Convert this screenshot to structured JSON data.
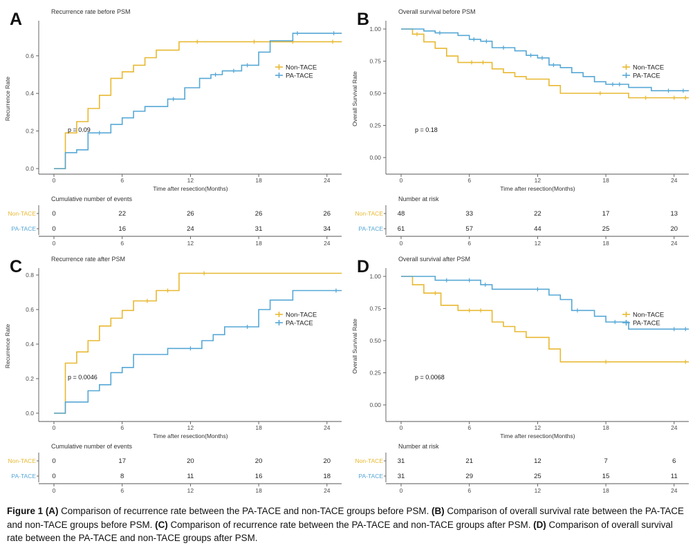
{
  "colors": {
    "non_tace": "#E8B830",
    "pa_tace": "#55A7D5",
    "axis": "#555555",
    "tick_text": "#4d4d4d",
    "text": "#222222"
  },
  "chart_data": [
    {
      "panel": "A",
      "type": "line",
      "subtype": "kaplan-meier-step",
      "title": "Recurrence rate before PSM",
      "xlabel": "Time after resection(Months)",
      "ylabel": "Recurrence Rate",
      "p_value": "p = 0.09",
      "legend_position": "right",
      "grid": false,
      "xlim": [
        0,
        25.3
      ],
      "xticks": [
        0,
        6,
        12,
        18,
        24
      ],
      "ylim": [
        0,
        0.74
      ],
      "yticks": [
        0,
        0.2,
        0.4,
        0.6
      ],
      "ytick_labels": [
        "0.0",
        "0.2",
        "0.4",
        "0.6"
      ],
      "series": [
        {
          "name": "Non-TACE",
          "color_key": "non_tace",
          "steps": [
            [
              0,
              0
            ],
            [
              1,
              0.19
            ],
            [
              2,
              0.25
            ],
            [
              3,
              0.32
            ],
            [
              4,
              0.39
            ],
            [
              5,
              0.48
            ],
            [
              6,
              0.515
            ],
            [
              7,
              0.55
            ],
            [
              8,
              0.59
            ],
            [
              9,
              0.63
            ],
            [
              11,
              0.675
            ],
            [
              25.3,
              0.675
            ]
          ],
          "censors": [
            [
              12.6,
              0.675
            ],
            [
              17.6,
              0.675
            ],
            [
              21,
              0.675
            ],
            [
              24.5,
              0.675
            ]
          ]
        },
        {
          "name": "PA-TACE",
          "color_key": "pa_tace",
          "steps": [
            [
              0,
              0
            ],
            [
              1,
              0.085
            ],
            [
              2,
              0.1
            ],
            [
              3,
              0.19
            ],
            [
              5,
              0.235
            ],
            [
              6,
              0.27
            ],
            [
              7,
              0.305
            ],
            [
              8,
              0.33
            ],
            [
              10,
              0.37
            ],
            [
              11.5,
              0.43
            ],
            [
              12.8,
              0.48
            ],
            [
              13.8,
              0.5
            ],
            [
              14.8,
              0.52
            ],
            [
              16.5,
              0.55
            ],
            [
              18,
              0.62
            ],
            [
              19,
              0.68
            ],
            [
              21,
              0.72
            ],
            [
              25.3,
              0.72
            ]
          ],
          "censors": [
            [
              4,
              0.19
            ],
            [
              10.5,
              0.37
            ],
            [
              14.2,
              0.5
            ],
            [
              15.8,
              0.52
            ],
            [
              17,
              0.55
            ],
            [
              21.4,
              0.72
            ],
            [
              24.6,
              0.72
            ]
          ]
        }
      ],
      "table": {
        "title": "Cumulative number of events",
        "xticks": [
          0,
          6,
          12,
          18,
          24
        ],
        "xlabel": "Time after resection(Months)",
        "rows": [
          {
            "label": "Non-TACE",
            "color_key": "non_tace",
            "values": [
              "0",
              "22",
              "26",
              "26",
              "26"
            ]
          },
          {
            "label": "PA-TACE",
            "color_key": "pa_tace",
            "values": [
              "0",
              "16",
              "24",
              "31",
              "34"
            ]
          }
        ]
      }
    },
    {
      "panel": "B",
      "type": "line",
      "subtype": "kaplan-meier-step",
      "title": "Overall survival before PSM",
      "xlabel": "Time after resection(Months)",
      "ylabel": "Overall Survival Rate",
      "p_value": "p = 0.18",
      "legend_position": "right",
      "grid": false,
      "xlim": [
        0,
        25.3
      ],
      "xticks": [
        0,
        6,
        12,
        18,
        24
      ],
      "ylim": [
        0,
        1.0
      ],
      "yticks": [
        0,
        0.25,
        0.5,
        0.75,
        1.0
      ],
      "ytick_labels": [
        "0.00",
        "0.25",
        "0.50",
        "0.75",
        "1.00"
      ],
      "series": [
        {
          "name": "Non-TACE",
          "color_key": "non_tace",
          "steps": [
            [
              0,
              1.0
            ],
            [
              1,
              0.96
            ],
            [
              2,
              0.9
            ],
            [
              3,
              0.85
            ],
            [
              4,
              0.79
            ],
            [
              5,
              0.74
            ],
            [
              8,
              0.69
            ],
            [
              9,
              0.66
            ],
            [
              10,
              0.63
            ],
            [
              11,
              0.61
            ],
            [
              13,
              0.56
            ],
            [
              14,
              0.5
            ],
            [
              20,
              0.465
            ],
            [
              25.3,
              0.465
            ]
          ],
          "censors": [
            [
              1.4,
              0.96
            ],
            [
              6.2,
              0.74
            ],
            [
              7.2,
              0.74
            ],
            [
              17.5,
              0.5
            ],
            [
              21.5,
              0.465
            ],
            [
              24,
              0.465
            ],
            [
              25,
              0.465
            ]
          ]
        },
        {
          "name": "PA-TACE",
          "color_key": "pa_tace",
          "steps": [
            [
              0,
              1.0
            ],
            [
              2,
              0.985
            ],
            [
              3,
              0.97
            ],
            [
              5,
              0.95
            ],
            [
              6,
              0.92
            ],
            [
              7,
              0.905
            ],
            [
              8,
              0.855
            ],
            [
              10,
              0.83
            ],
            [
              11,
              0.795
            ],
            [
              12,
              0.775
            ],
            [
              13,
              0.72
            ],
            [
              14,
              0.7
            ],
            [
              15,
              0.66
            ],
            [
              16,
              0.63
            ],
            [
              17,
              0.59
            ],
            [
              18,
              0.57
            ],
            [
              20,
              0.545
            ],
            [
              22,
              0.52
            ],
            [
              25.3,
              0.52
            ]
          ],
          "censors": [
            [
              3.4,
              0.97
            ],
            [
              6.4,
              0.92
            ],
            [
              7.5,
              0.905
            ],
            [
              9,
              0.855
            ],
            [
              11.4,
              0.795
            ],
            [
              12.4,
              0.775
            ],
            [
              13.4,
              0.72
            ],
            [
              18.6,
              0.57
            ],
            [
              19.2,
              0.57
            ],
            [
              23.5,
              0.52
            ],
            [
              24.8,
              0.52
            ]
          ]
        }
      ],
      "table": {
        "title": "Number at risk",
        "xticks": [
          0,
          6,
          12,
          18,
          24
        ],
        "xlabel": "Time after resection(Months)",
        "rows": [
          {
            "label": "Non-TACE",
            "color_key": "non_tace",
            "values": [
              "48",
              "33",
              "22",
              "17",
              "13"
            ]
          },
          {
            "label": "PA-TACE",
            "color_key": "pa_tace",
            "values": [
              "61",
              "57",
              "44",
              "25",
              "20"
            ]
          }
        ]
      }
    },
    {
      "panel": "C",
      "type": "line",
      "subtype": "kaplan-meier-step",
      "title": "Recurrence rate after PSM",
      "xlabel": "Time after resection(Months)",
      "ylabel": "Recurrence Rate",
      "p_value": "p = 0.0046",
      "legend_position": "right",
      "grid": false,
      "xlim": [
        0,
        25.3
      ],
      "xticks": [
        0,
        6,
        12,
        18,
        24
      ],
      "ylim": [
        0,
        0.8
      ],
      "yticks": [
        0,
        0.2,
        0.4,
        0.6,
        0.8
      ],
      "ytick_labels": [
        "0.0",
        "0.2",
        "0.4",
        "0.6",
        "0.8"
      ],
      "series": [
        {
          "name": "Non-TACE",
          "color_key": "non_tace",
          "steps": [
            [
              0,
              0
            ],
            [
              1,
              0.29
            ],
            [
              2,
              0.355
            ],
            [
              3,
              0.42
            ],
            [
              4,
              0.505
            ],
            [
              5,
              0.55
            ],
            [
              6,
              0.595
            ],
            [
              7,
              0.65
            ],
            [
              9,
              0.71
            ],
            [
              11,
              0.81
            ],
            [
              25.3,
              0.81
            ]
          ],
          "censors": [
            [
              8.2,
              0.65
            ],
            [
              10,
              0.71
            ],
            [
              13.2,
              0.81
            ]
          ]
        },
        {
          "name": "PA-TACE",
          "color_key": "pa_tace",
          "steps": [
            [
              0,
              0
            ],
            [
              1,
              0.065
            ],
            [
              3,
              0.13
            ],
            [
              4,
              0.165
            ],
            [
              5,
              0.235
            ],
            [
              6,
              0.265
            ],
            [
              7,
              0.34
            ],
            [
              10,
              0.375
            ],
            [
              13,
              0.42
            ],
            [
              14,
              0.455
            ],
            [
              15,
              0.5
            ],
            [
              18,
              0.6
            ],
            [
              19,
              0.655
            ],
            [
              21,
              0.71
            ],
            [
              25.3,
              0.71
            ]
          ],
          "censors": [
            [
              12,
              0.375
            ],
            [
              17,
              0.5
            ],
            [
              24.8,
              0.71
            ]
          ]
        }
      ],
      "table": {
        "title": "Cumulative number of events",
        "xticks": [
          0,
          6,
          12,
          18,
          24
        ],
        "xlabel": "Time after resection(Months)",
        "rows": [
          {
            "label": "Non-TACE",
            "color_key": "non_tace",
            "values": [
              "0",
              "17",
              "20",
              "20",
              "20"
            ]
          },
          {
            "label": "PA-TACE",
            "color_key": "pa_tace",
            "values": [
              "0",
              "8",
              "11",
              "16",
              "18"
            ]
          }
        ]
      }
    },
    {
      "panel": "D",
      "type": "line",
      "subtype": "kaplan-meier-step",
      "title": "Overall survival after PSM",
      "xlabel": "Time after resection(Months)",
      "ylabel": "Overall Survival Rate",
      "p_value": "p = 0.0068",
      "legend_position": "right",
      "grid": false,
      "xlim": [
        0,
        25.3
      ],
      "xticks": [
        0,
        6,
        12,
        18,
        24
      ],
      "ylim": [
        0,
        1.0
      ],
      "yticks": [
        0,
        0.25,
        0.5,
        0.75,
        1.0
      ],
      "ytick_labels": [
        "0.00",
        "0.25",
        "0.50",
        "0.75",
        "1.00"
      ],
      "series": [
        {
          "name": "Non-TACE",
          "color_key": "non_tace",
          "steps": [
            [
              0,
              1.0
            ],
            [
              1,
              0.935
            ],
            [
              2,
              0.87
            ],
            [
              3.5,
              0.775
            ],
            [
              5,
              0.735
            ],
            [
              8,
              0.645
            ],
            [
              9,
              0.61
            ],
            [
              10,
              0.57
            ],
            [
              11,
              0.525
            ],
            [
              13,
              0.435
            ],
            [
              14,
              0.335
            ],
            [
              25.3,
              0.335
            ]
          ],
          "censors": [
            [
              3,
              0.87
            ],
            [
              6,
              0.735
            ],
            [
              7,
              0.735
            ],
            [
              18,
              0.335
            ],
            [
              25,
              0.335
            ]
          ]
        },
        {
          "name": "PA-TACE",
          "color_key": "pa_tace",
          "steps": [
            [
              0,
              1.0
            ],
            [
              3,
              0.97
            ],
            [
              7,
              0.935
            ],
            [
              8,
              0.9
            ],
            [
              13,
              0.855
            ],
            [
              14,
              0.82
            ],
            [
              15,
              0.735
            ],
            [
              17,
              0.69
            ],
            [
              18,
              0.645
            ],
            [
              20,
              0.59
            ],
            [
              25.3,
              0.59
            ]
          ],
          "censors": [
            [
              4,
              0.97
            ],
            [
              6,
              0.97
            ],
            [
              7.4,
              0.935
            ],
            [
              12,
              0.9
            ],
            [
              15.5,
              0.735
            ],
            [
              18.8,
              0.645
            ],
            [
              24,
              0.59
            ],
            [
              25,
              0.59
            ]
          ]
        }
      ],
      "table": {
        "title": "Number at risk",
        "xticks": [
          0,
          6,
          12,
          18,
          24
        ],
        "xlabel": "Time after resection(Months)",
        "rows": [
          {
            "label": "Non-TACE",
            "color_key": "non_tace",
            "values": [
              "31",
              "21",
              "12",
              "7",
              "6"
            ]
          },
          {
            "label": "PA-TACE",
            "color_key": "pa_tace",
            "values": [
              "31",
              "29",
              "25",
              "15",
              "11"
            ]
          }
        ]
      }
    }
  ],
  "caption": {
    "segments": [
      {
        "text": "Figure 1 ",
        "bold": true
      },
      {
        "text": "(A)",
        "bold": true
      },
      {
        "text": " Comparison of recurrence rate between the PA-TACE and non-TACE groups before PSM. ",
        "bold": false
      },
      {
        "text": "(B)",
        "bold": true
      },
      {
        "text": " Comparison of overall survival rate between the PA-TACE and non-TACE groups before PSM. ",
        "bold": false
      },
      {
        "text": "(C)",
        "bold": true
      },
      {
        "text": " Comparison of recurrence rate between the PA-TACE and non-TACE groups after PSM. ",
        "bold": false
      },
      {
        "text": "(D)",
        "bold": true
      },
      {
        "text": " Comparison of overall survival rate between the PA-TACE and non-TACE groups after PSM.",
        "bold": false
      }
    ]
  }
}
